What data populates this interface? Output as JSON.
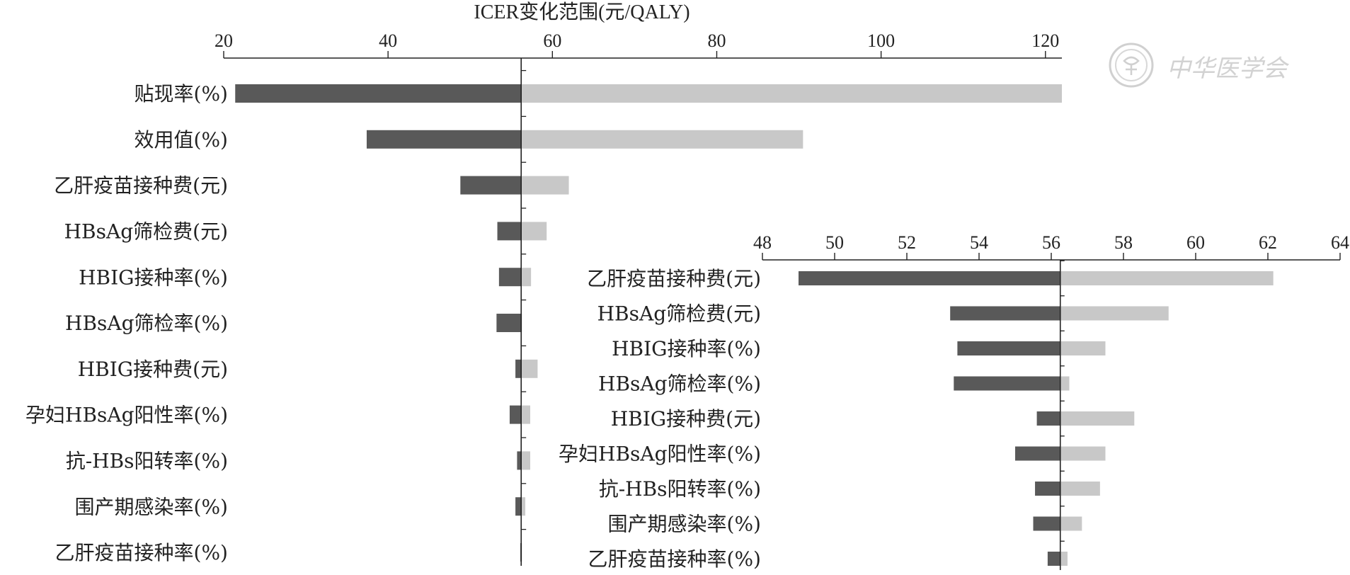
{
  "chart_data": {
    "type": "bar",
    "title": "ICER变化范围(元/QALY)",
    "colors": {
      "low": "#595959",
      "high": "#c8c8c8"
    },
    "watermark": "中华医学会",
    "panels": [
      {
        "name": "main",
        "xlim": [
          20,
          122
        ],
        "ticks": [
          20,
          40,
          60,
          80,
          100,
          120
        ],
        "baseline": 56.2,
        "categories": [
          "贴现率(%)",
          "效用值(%)",
          "乙肝疫苗接种费(元)",
          "HBsAg筛检费(元)",
          "HBIG接种率(%)",
          "HBsAg筛检率(%)",
          "HBIG接种费(元)",
          "孕妇HBsAg阳性率(%)",
          "抗-HBs阳转率(%)",
          "围产期感染率(%)",
          "乙肝疫苗接种率(%)"
        ],
        "series": [
          {
            "values": [
              21.4,
              37.4,
              48.8,
              53.3,
              53.5,
              53.2,
              55.5,
              54.8,
              57.3,
              56.7,
              56.3
            ]
          },
          {
            "values": [
              122,
              90.5,
              62.0,
              59.3,
              57.4,
              56.2,
              58.2,
              57.3,
              55.7,
              55.5,
              56.1
            ]
          }
        ]
      },
      {
        "name": "inset",
        "xlim": [
          48,
          64
        ],
        "ticks": [
          48,
          50,
          52,
          54,
          56,
          58,
          60,
          62,
          64
        ],
        "baseline": 56.25,
        "categories": [
          "乙肝疫苗接种费(元)",
          "HBsAg筛检费(元)",
          "HBIG接种率(%)",
          "HBsAg筛检率(%)",
          "HBIG接种费(元)",
          "孕妇HBsAg阳性率(%)",
          "抗-HBs阳转率(%)",
          "围产期感染率(%)",
          "乙肝疫苗接种率(%)"
        ],
        "series": [
          {
            "values": [
              49.0,
              53.2,
              53.4,
              53.3,
              55.6,
              55.0,
              57.35,
              56.85,
              56.45
            ]
          },
          {
            "values": [
              62.15,
              59.25,
              57.5,
              56.5,
              58.3,
              57.5,
              55.55,
              55.5,
              55.9
            ]
          }
        ]
      }
    ]
  }
}
